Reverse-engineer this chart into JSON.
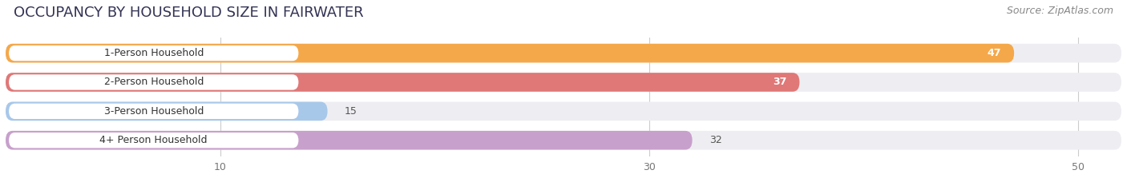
{
  "title": "OCCUPANCY BY HOUSEHOLD SIZE IN FAIRWATER",
  "source": "Source: ZipAtlas.com",
  "categories": [
    "1-Person Household",
    "2-Person Household",
    "3-Person Household",
    "4+ Person Household"
  ],
  "values": [
    47,
    37,
    15,
    32
  ],
  "bar_colors": [
    "#F5A84A",
    "#E07878",
    "#A8C8EA",
    "#C8A0CC"
  ],
  "bar_bg_colors": [
    "#EEEEF2",
    "#EEEEF2",
    "#EEEEF2",
    "#EEEEF2"
  ],
  "value_colors": [
    "white",
    "white",
    "black",
    "black"
  ],
  "xlim_max": 52,
  "xticks": [
    10,
    30,
    50
  ],
  "background_color": "#ffffff",
  "title_fontsize": 13,
  "source_fontsize": 9,
  "bar_label_fontsize": 9,
  "value_fontsize": 9,
  "title_color": "#333355",
  "source_color": "#888888"
}
